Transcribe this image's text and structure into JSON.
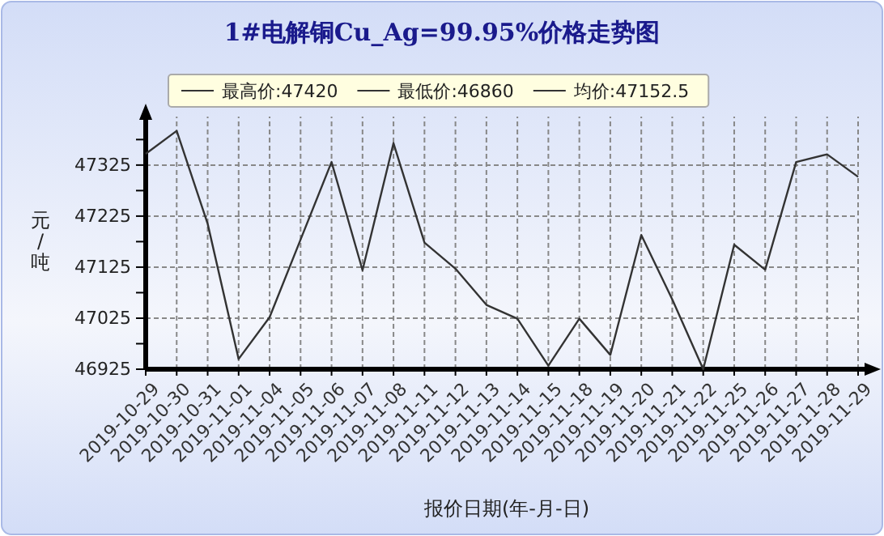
{
  "chart_data": {
    "type": "line",
    "title": "1#电解铜Cu_Ag=99.95%价格走势图",
    "xlabel": "报价日期(年-月-日)",
    "ylabel": "元/吨",
    "annotations": [
      "最高价:47420",
      "最低价:46860",
      "均价:47152.5"
    ],
    "categories": [
      "2019-10-29",
      "2019-10-30",
      "2019-10-31",
      "2019-11-01",
      "2019-11-04",
      "2019-11-05",
      "2019-11-06",
      "2019-11-07",
      "2019-11-08",
      "2019-11-11",
      "2019-11-12",
      "2019-11-13",
      "2019-11-14",
      "2019-11-15",
      "2019-11-18",
      "2019-11-19",
      "2019-11-20",
      "2019-11-21",
      "2019-11-22",
      "2019-11-25",
      "2019-11-26",
      "2019-11-27",
      "2019-11-28",
      "2019-11-29"
    ],
    "series": [
      {
        "color": "#333333",
        "values": [
          47347,
          47392,
          47210,
          46945,
          47027,
          47179,
          47331,
          47119,
          47368,
          47173,
          47122,
          47051,
          47024,
          46932,
          47024,
          46953,
          47188,
          47062,
          46925,
          47169,
          47120,
          47331,
          47346,
          47302
        ]
      }
    ],
    "ylim": [
      46925,
      47420
    ],
    "yticks": [
      46925,
      {
        "value": 46975,
        "label": null
      },
      47025,
      {
        "value": 47075,
        "label": null
      },
      47125,
      {
        "value": 47175,
        "label": null
      },
      47225,
      {
        "value": 47275,
        "label": null
      },
      47325,
      {
        "value": 47375,
        "label": null
      }
    ],
    "grid": true,
    "marker": "none",
    "line_style": "solid"
  }
}
